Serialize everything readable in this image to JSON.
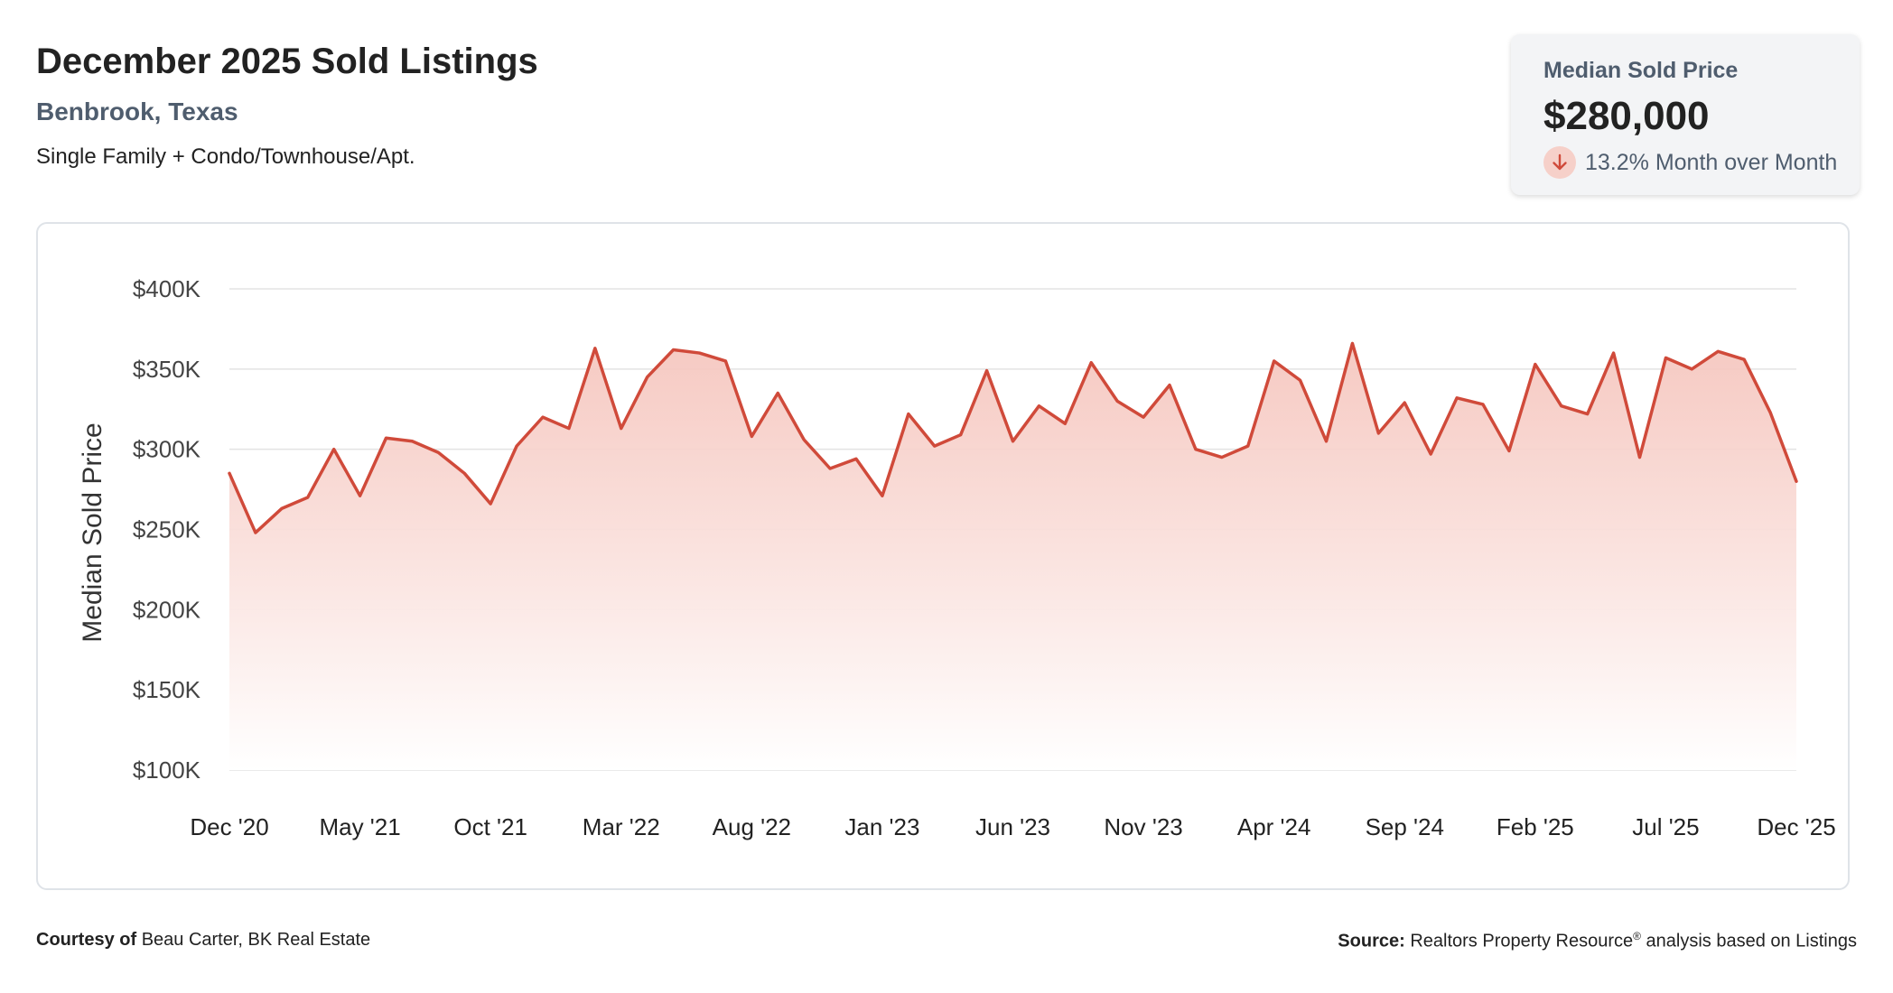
{
  "header": {
    "title": "December 2025 Sold Listings",
    "location": "Benbrook, Texas",
    "property_types": "Single Family + Condo/Townhouse/Apt."
  },
  "kpi": {
    "label": "Median Sold Price",
    "value": "$280,000",
    "change": "13.2% Month over Month",
    "direction": "down",
    "icon": "arrow-down-icon"
  },
  "colors": {
    "line": "#d04a3a",
    "area_top": "#f5c4bc",
    "grid": "#e3e3e3",
    "kpi_badge": "#f6d0c9",
    "muted_text": "#4f5d6e"
  },
  "footer": {
    "courtesy_label": "Courtesy of",
    "courtesy_value": "Beau Carter, BK Real Estate",
    "source_label": "Source:",
    "source_value": "Realtors Property Resource",
    "source_mark": "®",
    "source_suffix": "analysis based on Listings"
  },
  "chart_data": {
    "type": "area",
    "title": "",
    "xlabel": "",
    "ylabel": "Median Sold Price",
    "ylim": [
      100000,
      400000
    ],
    "yticks": [
      100000,
      150000,
      200000,
      250000,
      300000,
      350000,
      400000
    ],
    "ytick_labels": [
      "$100K",
      "$150K",
      "$200K",
      "$250K",
      "$300K",
      "$350K",
      "$400K"
    ],
    "grid": true,
    "legend": "none",
    "xtick_labels": [
      "Dec '20",
      "May '21",
      "Oct '21",
      "Mar '22",
      "Aug '22",
      "Jan '23",
      "Jun '23",
      "Nov '23",
      "Apr '24",
      "Sep '24",
      "Feb '25",
      "Jul '25",
      "Dec '25"
    ],
    "xtick_every": 5,
    "categories": [
      "Dec '20",
      "Jan '21",
      "Feb '21",
      "Mar '21",
      "Apr '21",
      "May '21",
      "Jun '21",
      "Jul '21",
      "Aug '21",
      "Sep '21",
      "Oct '21",
      "Nov '21",
      "Dec '21",
      "Jan '22",
      "Feb '22",
      "Mar '22",
      "Apr '22",
      "May '22",
      "Jun '22",
      "Jul '22",
      "Aug '22",
      "Sep '22",
      "Oct '22",
      "Nov '22",
      "Dec '22",
      "Jan '23",
      "Feb '23",
      "Mar '23",
      "Apr '23",
      "May '23",
      "Jun '23",
      "Jul '23",
      "Aug '23",
      "Sep '23",
      "Oct '23",
      "Nov '23",
      "Dec '23",
      "Jan '24",
      "Feb '24",
      "Mar '24",
      "Apr '24",
      "May '24",
      "Jun '24",
      "Jul '24",
      "Aug '24",
      "Sep '24",
      "Oct '24",
      "Nov '24",
      "Dec '24",
      "Jan '25",
      "Feb '25",
      "Mar '25",
      "Apr '25",
      "May '25",
      "Jun '25",
      "Jul '25",
      "Aug '25",
      "Sep '25",
      "Oct '25",
      "Nov '25",
      "Dec '25"
    ],
    "series": [
      {
        "values": [
          285000,
          248000,
          263000,
          270000,
          300000,
          271000,
          307000,
          305000,
          298000,
          285000,
          266000,
          302000,
          320000,
          313000,
          363000,
          313000,
          345000,
          362000,
          360000,
          355000,
          308000,
          335000,
          306000,
          288000,
          294000,
          271000,
          322000,
          302000,
          309000,
          349000,
          305000,
          327000,
          316000,
          354000,
          330000,
          320000,
          340000,
          300000,
          295000,
          302000,
          355000,
          343000,
          305000,
          366000,
          310000,
          329000,
          297000,
          332000,
          328000,
          299000,
          353000,
          327000,
          322000,
          360000,
          295000,
          357000,
          350000,
          361000,
          356000,
          323000,
          280000
        ]
      }
    ]
  }
}
